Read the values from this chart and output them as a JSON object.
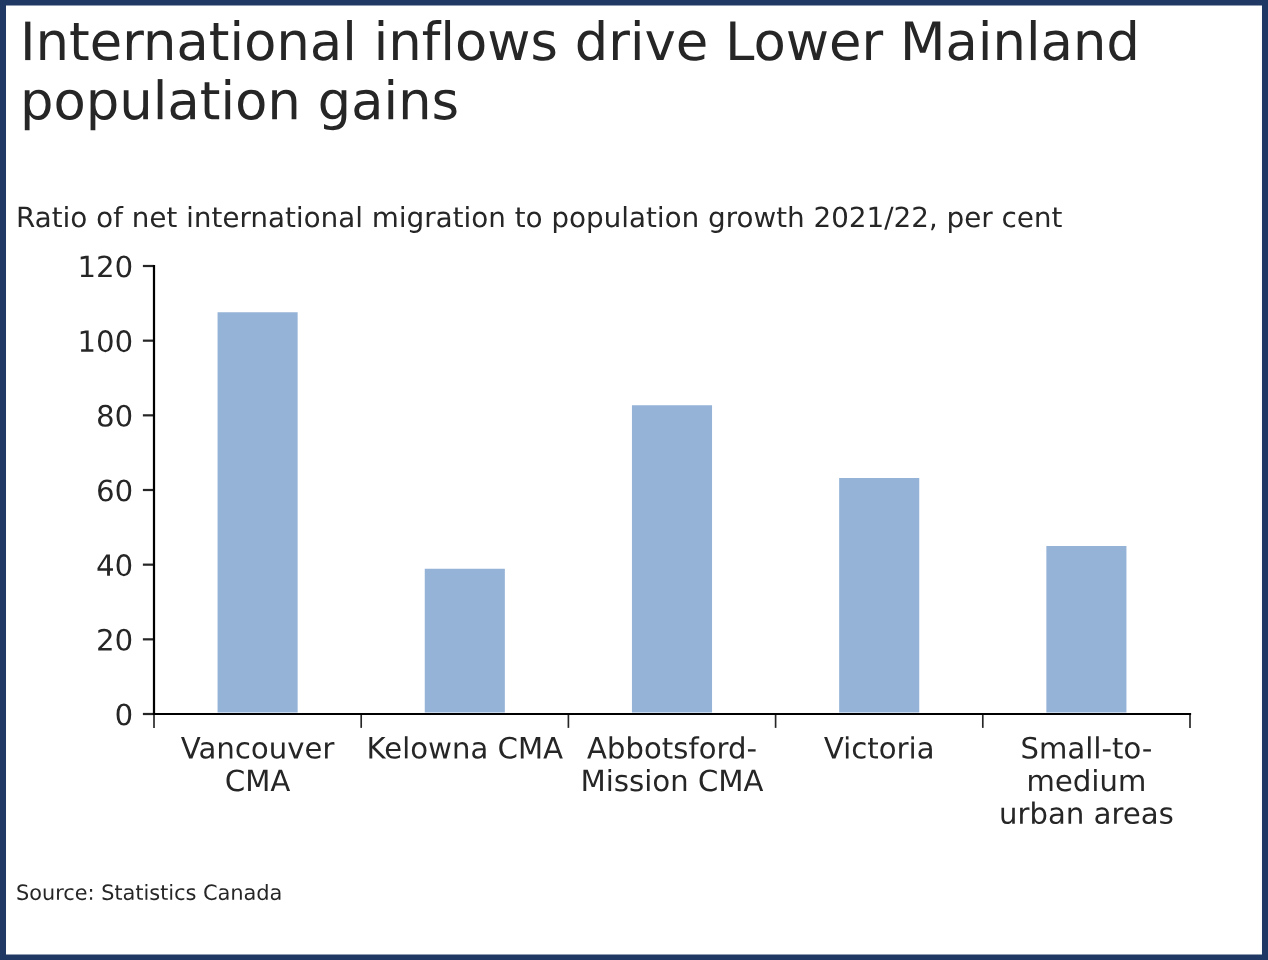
{
  "chart_data": {
    "type": "bar",
    "title": "International inflows drive Lower Mainland population gains",
    "subtitle": "Ratio of net international migration to population growth 2021/22, per cent",
    "categories": [
      "Vancouver\nCMA",
      "Kelowna CMA",
      "Abbotsford-\nMission CMA",
      "Victoria",
      "Small-to-\nmedium\nurban areas"
    ],
    "values": [
      108,
      39.3,
      83.1,
      63.6,
      45.4
    ],
    "color": "#95b3d7",
    "ylim": [
      0,
      120
    ],
    "yticks": [
      0,
      20,
      40,
      60,
      80,
      100,
      120
    ],
    "grid": false,
    "annotations": [
      "Source: Statistics Canada"
    ]
  }
}
